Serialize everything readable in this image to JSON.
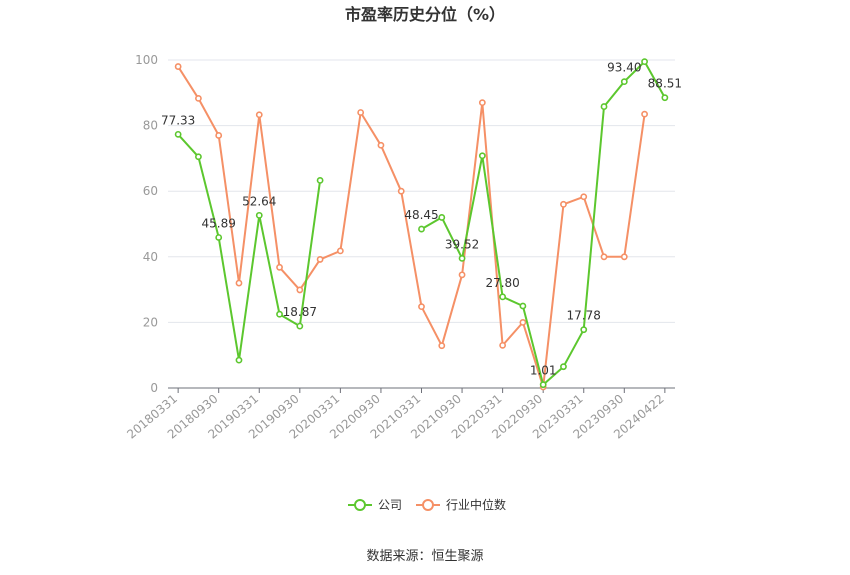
{
  "chart_data": {
    "type": "line",
    "title": "市盈率历史分位（%）",
    "source": "数据来源：恒生聚源",
    "x": [
      "20180331",
      "20180630",
      "20180930",
      "20181231",
      "20190331",
      "20190630",
      "20190930",
      "20191231",
      "20200331",
      "20200630",
      "20200930",
      "20201231",
      "20210331",
      "20210630",
      "20210930",
      "20211231",
      "20220331",
      "20220630",
      "20220930",
      "20221231",
      "20230331",
      "20230630",
      "20230930",
      "20231231",
      "20240422"
    ],
    "x_tick_labels": [
      "20180331",
      "20180930",
      "20190331",
      "20190930",
      "20200331",
      "20200930",
      "20210331",
      "20210930",
      "20220331",
      "20220930",
      "20230331",
      "20230930",
      "20240422"
    ],
    "ylim": [
      0,
      100
    ],
    "y_ticks": [
      0,
      20,
      40,
      60,
      80,
      100
    ],
    "series": [
      {
        "name": "公司",
        "color": "#5cc72e",
        "values": [
          77.33,
          70.5,
          45.89,
          8.5,
          52.64,
          22.5,
          18.87,
          63.3,
          null,
          null,
          null,
          null,
          48.45,
          52.0,
          39.52,
          70.8,
          27.8,
          25.0,
          1.01,
          6.5,
          17.78,
          85.8,
          93.4,
          99.5,
          88.51
        ],
        "labels": [
          {
            "index": 0,
            "text": "77.33"
          },
          {
            "index": 2,
            "text": "45.89"
          },
          {
            "index": 4,
            "text": "52.64"
          },
          {
            "index": 6,
            "text": "18.87"
          },
          {
            "index": 12,
            "text": "48.45"
          },
          {
            "index": 14,
            "text": "39.52"
          },
          {
            "index": 16,
            "text": "27.80"
          },
          {
            "index": 18,
            "text": "1.01"
          },
          {
            "index": 20,
            "text": "17.78"
          },
          {
            "index": 22,
            "text": "93.40"
          },
          {
            "index": 24,
            "text": "88.51"
          }
        ]
      },
      {
        "name": "行业中位数",
        "color": "#f59066",
        "values": [
          98.0,
          88.3,
          77.0,
          32.0,
          83.3,
          36.8,
          29.9,
          39.2,
          41.8,
          84.0,
          74.0,
          60.0,
          24.8,
          12.9,
          34.5,
          87.0,
          13.0,
          20.0,
          0.3,
          56.0,
          58.3,
          40.0,
          40.0,
          83.5,
          null
        ],
        "labels": []
      }
    ],
    "legend_position": "bottom-center",
    "grid": true
  }
}
